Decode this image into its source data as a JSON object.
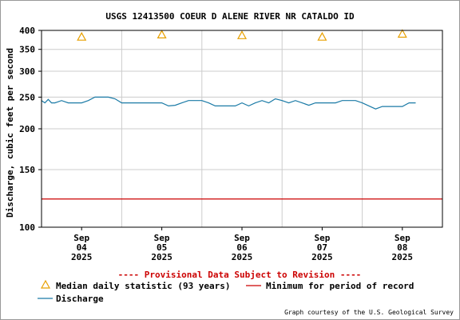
{
  "chart_data": {
    "type": "line",
    "title": "USGS 12413500 COEUR D ALENE RIVER NR CATALDO ID",
    "ylabel": "Discharge, cubic feet per second",
    "xlabel": "",
    "y_scale": "log",
    "ylim": [
      100,
      400
    ],
    "y_ticks": [
      100,
      150,
      200,
      250,
      300,
      350,
      400
    ],
    "y_tick_labels": [
      "100",
      "150",
      "200",
      "250",
      "300",
      "350",
      "400"
    ],
    "xlim": [
      "2025-09-03 12:00",
      "2025-09-08 12:00"
    ],
    "x_ticks": [
      {
        "date": "2025-09-04",
        "label": [
          "Sep",
          "04",
          "2025"
        ]
      },
      {
        "date": "2025-09-05",
        "label": [
          "Sep",
          "05",
          "2025"
        ]
      },
      {
        "date": "2025-09-06",
        "label": [
          "Sep",
          "06",
          "2025"
        ]
      },
      {
        "date": "2025-09-07",
        "label": [
          "Sep",
          "07",
          "2025"
        ]
      },
      {
        "date": "2025-09-08",
        "label": [
          "Sep",
          "08",
          "2025"
        ]
      }
    ],
    "grid": true,
    "series": [
      {
        "name": "Discharge",
        "color": "#1a7aa6",
        "style": "line",
        "x": [
          "2025-09-03 12:00",
          "2025-09-03 13:00",
          "2025-09-03 14:00",
          "2025-09-03 15:00",
          "2025-09-03 16:00",
          "2025-09-03 18:00",
          "2025-09-03 20:00",
          "2025-09-03 22:00",
          "2025-09-04 00:00",
          "2025-09-04 02:00",
          "2025-09-04 04:00",
          "2025-09-04 06:00",
          "2025-09-04 08:00",
          "2025-09-04 10:00",
          "2025-09-04 12:00",
          "2025-09-04 14:00",
          "2025-09-04 16:00",
          "2025-09-04 18:00",
          "2025-09-04 20:00",
          "2025-09-04 22:00",
          "2025-09-05 00:00",
          "2025-09-05 02:00",
          "2025-09-05 04:00",
          "2025-09-05 06:00",
          "2025-09-05 08:00",
          "2025-09-05 10:00",
          "2025-09-05 12:00",
          "2025-09-05 14:00",
          "2025-09-05 16:00",
          "2025-09-05 18:00",
          "2025-09-05 20:00",
          "2025-09-05 22:00",
          "2025-09-06 00:00",
          "2025-09-06 02:00",
          "2025-09-06 04:00",
          "2025-09-06 06:00",
          "2025-09-06 08:00",
          "2025-09-06 10:00",
          "2025-09-06 12:00",
          "2025-09-06 14:00",
          "2025-09-06 16:00",
          "2025-09-06 18:00",
          "2025-09-06 20:00",
          "2025-09-06 22:00",
          "2025-09-07 00:00",
          "2025-09-07 02:00",
          "2025-09-07 04:00",
          "2025-09-07 06:00",
          "2025-09-07 08:00",
          "2025-09-07 10:00",
          "2025-09-07 12:00",
          "2025-09-07 14:00",
          "2025-09-07 16:00",
          "2025-09-07 18:00",
          "2025-09-07 20:00",
          "2025-09-07 22:00",
          "2025-09-08 00:00",
          "2025-09-08 02:00",
          "2025-09-08 04:00"
        ],
        "y": [
          244,
          240,
          246,
          240,
          240,
          244,
          240,
          240,
          240,
          244,
          250,
          250,
          250,
          247,
          240,
          240,
          240,
          240,
          240,
          240,
          240,
          235,
          236,
          240,
          244,
          244,
          244,
          240,
          235,
          235,
          235,
          235,
          240,
          235,
          240,
          244,
          240,
          247,
          244,
          240,
          244,
          240,
          236,
          240,
          240,
          240,
          240,
          244,
          244,
          244,
          240,
          235,
          230,
          234,
          234,
          234,
          234,
          240,
          240
        ]
      },
      {
        "name": "Median daily statistic (93 years)",
        "color": "#e8a000",
        "style": "triangle",
        "x": [
          "2025-09-04",
          "2025-09-05",
          "2025-09-06",
          "2025-09-07",
          "2025-09-08"
        ],
        "y": [
          382,
          388,
          386,
          382,
          390
        ]
      },
      {
        "name": "Minimum for period of record",
        "color": "#cc0000",
        "style": "hline",
        "y": 122
      }
    ],
    "legend_position": "bottom",
    "annotation": "---- Provisional Data Subject to Revision ----",
    "credit": "Graph courtesy of the U.S. Geological Survey"
  }
}
